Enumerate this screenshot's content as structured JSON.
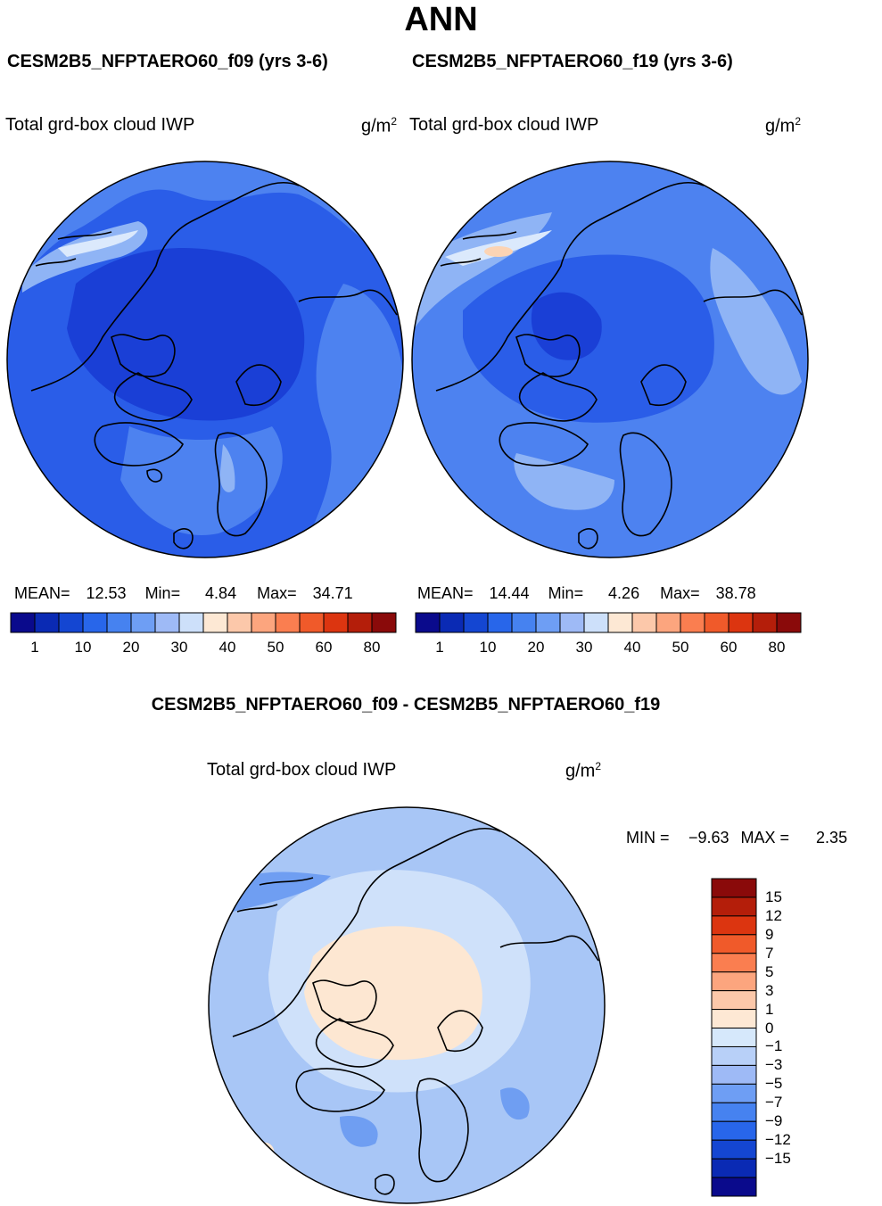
{
  "figure": {
    "title": "ANN",
    "units_base": "g/m",
    "units_exp": "2"
  },
  "panels": [
    {
      "case": "CESM2B5_NFPTAERO60_f09 (yrs 3-6)",
      "variable": "Total grd-box cloud IWP",
      "stats": {
        "mean_label": "MEAN=",
        "mean": "12.53",
        "min_label": "Min=",
        "min": "4.84",
        "max_label": "Max=",
        "max": "34.71"
      }
    },
    {
      "case": "CESM2B5_NFPTAERO60_f19 (yrs 3-6)",
      "variable": "Total grd-box cloud IWP",
      "stats": {
        "mean_label": "MEAN=",
        "mean": "14.44",
        "min_label": "Min=",
        "min": "4.26",
        "max_label": "Max=",
        "max": "38.78"
      }
    }
  ],
  "colorbar_top": {
    "colors": [
      "#0a0a8c",
      "#0a2ab4",
      "#1446d2",
      "#2866ea",
      "#4682f0",
      "#6e9ef4",
      "#9ebaf6",
      "#cde0fa",
      "#fde8d4",
      "#fcc8aa",
      "#fca57e",
      "#fa7e50",
      "#f05a2a",
      "#dc3510",
      "#b41e0a",
      "#8a0a0a"
    ],
    "tick_labels": [
      "1",
      "10",
      "20",
      "30",
      "40",
      "50",
      "60",
      "80"
    ]
  },
  "diff": {
    "title": "CESM2B5_NFPTAERO60_f09 - CESM2B5_NFPTAERO60_f19",
    "variable": "Total grd-box cloud IWP",
    "min_label": "MIN =",
    "min": "−9.63",
    "max_label": "MAX =",
    "max": "2.35",
    "colorbar": {
      "colors_top_to_bottom": [
        "#8a0a0a",
        "#b41e0a",
        "#dc3510",
        "#f05a2a",
        "#fa7e50",
        "#fca57e",
        "#fcc8aa",
        "#fde8d4",
        "#d6e8fb",
        "#b8d0f8",
        "#9ebaf6",
        "#6e9ef4",
        "#4682f0",
        "#2866ea",
        "#1446d2",
        "#0a2ab4",
        "#0a0a8c"
      ],
      "tick_labels": [
        "15",
        "12",
        "9",
        "7",
        "5",
        "3",
        "1",
        "0",
        "−1",
        "−3",
        "−5",
        "−7",
        "−9",
        "−12",
        "−15"
      ]
    }
  },
  "map_colors": {
    "deep": "#1a3fd6",
    "mid": "#2a5de8",
    "light": "#4d82f0",
    "pale": "#8fb4f5",
    "white": "#dbe9fc",
    "orange": "#fcd4b4",
    "diff_base": "#a8c6f6",
    "diff_light": "#cfe1fa",
    "diff_peach": "#fde7d2",
    "diff_blue": "#6f9ef2"
  }
}
